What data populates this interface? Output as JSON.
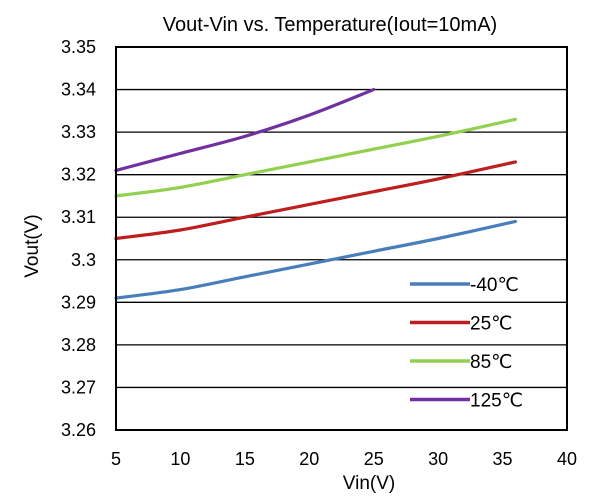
{
  "chart_data": {
    "type": "line",
    "title": "Vout-Vin vs. Temperature(Iout=10mA)",
    "xlabel": "Vin(V)",
    "ylabel": "Vout(V)",
    "xlim": [
      5,
      40
    ],
    "ylim": [
      3.26,
      3.35
    ],
    "xticks": [
      "5",
      "10",
      "15",
      "20",
      "25",
      "30",
      "35",
      "40"
    ],
    "yticks": [
      "3.35",
      "3.34",
      "3.33",
      "3.32",
      "3.31",
      "3.3",
      "3.29",
      "3.28",
      "3.27",
      "3.26"
    ],
    "grid": "horizontal",
    "legend_position": "bottom-right",
    "series": [
      {
        "name": "-40℃",
        "color": "#4a7ebb",
        "points": [
          [
            5,
            3.291
          ],
          [
            10,
            3.293
          ],
          [
            15,
            3.296
          ],
          [
            20,
            3.299
          ],
          [
            25,
            3.302
          ],
          [
            30,
            3.305
          ],
          [
            36,
            3.309
          ]
        ]
      },
      {
        "name": "25℃",
        "color": "#be1e1e",
        "points": [
          [
            5,
            3.305
          ],
          [
            10,
            3.307
          ],
          [
            15,
            3.31
          ],
          [
            20,
            3.313
          ],
          [
            25,
            3.316
          ],
          [
            30,
            3.319
          ],
          [
            36,
            3.323
          ]
        ]
      },
      {
        "name": "85℃",
        "color": "#92d050",
        "points": [
          [
            5,
            3.315
          ],
          [
            10,
            3.317
          ],
          [
            15,
            3.32
          ],
          [
            20,
            3.323
          ],
          [
            25,
            3.326
          ],
          [
            30,
            3.329
          ],
          [
            36,
            3.333
          ]
        ]
      },
      {
        "name": "125℃",
        "color": "#7030a0",
        "points": [
          [
            5,
            3.321
          ],
          [
            10,
            3.325
          ],
          [
            15,
            3.329
          ],
          [
            20,
            3.334
          ],
          [
            25,
            3.34
          ]
        ]
      }
    ]
  }
}
